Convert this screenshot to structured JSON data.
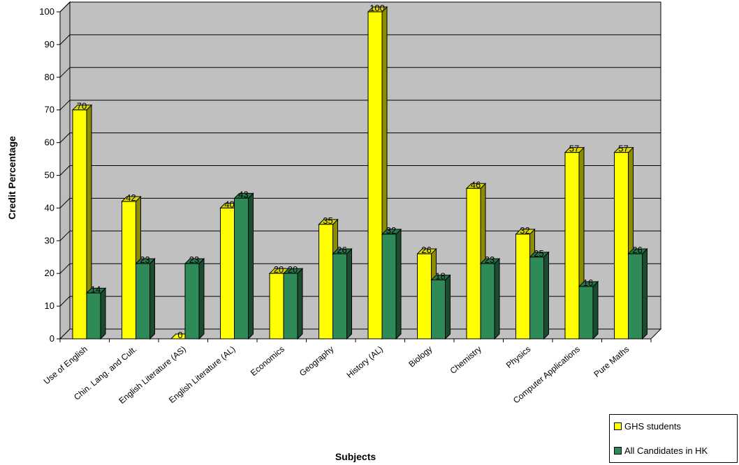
{
  "chart_data": {
    "type": "bar",
    "xlabel": "Subjects",
    "ylabel": "Credit Percentage",
    "ylim": [
      0,
      100
    ],
    "yticks": [
      0,
      10,
      20,
      30,
      40,
      50,
      60,
      70,
      80,
      90,
      100
    ],
    "grid": true,
    "legend_position": "bottom-right",
    "categories": [
      "Use of English",
      "Chin. Lang. and Cult.",
      "English Literature (AS)",
      "English Literature (AL)",
      "Economics",
      "Geography",
      "History (AL)",
      "Biology",
      "Chemistry",
      "Physics",
      "Computer Applications",
      "Pure Maths"
    ],
    "series": [
      {
        "name": "GHS students",
        "color": "#ffff00",
        "values": [
          70,
          42,
          0,
          40,
          20,
          35,
          100,
          26,
          46,
          32,
          57,
          57
        ]
      },
      {
        "name": "All Candidates in HK",
        "color": "#2e8b57",
        "values": [
          14,
          23,
          23,
          43,
          20,
          26,
          32,
          18,
          23,
          25,
          16,
          26
        ]
      }
    ]
  }
}
